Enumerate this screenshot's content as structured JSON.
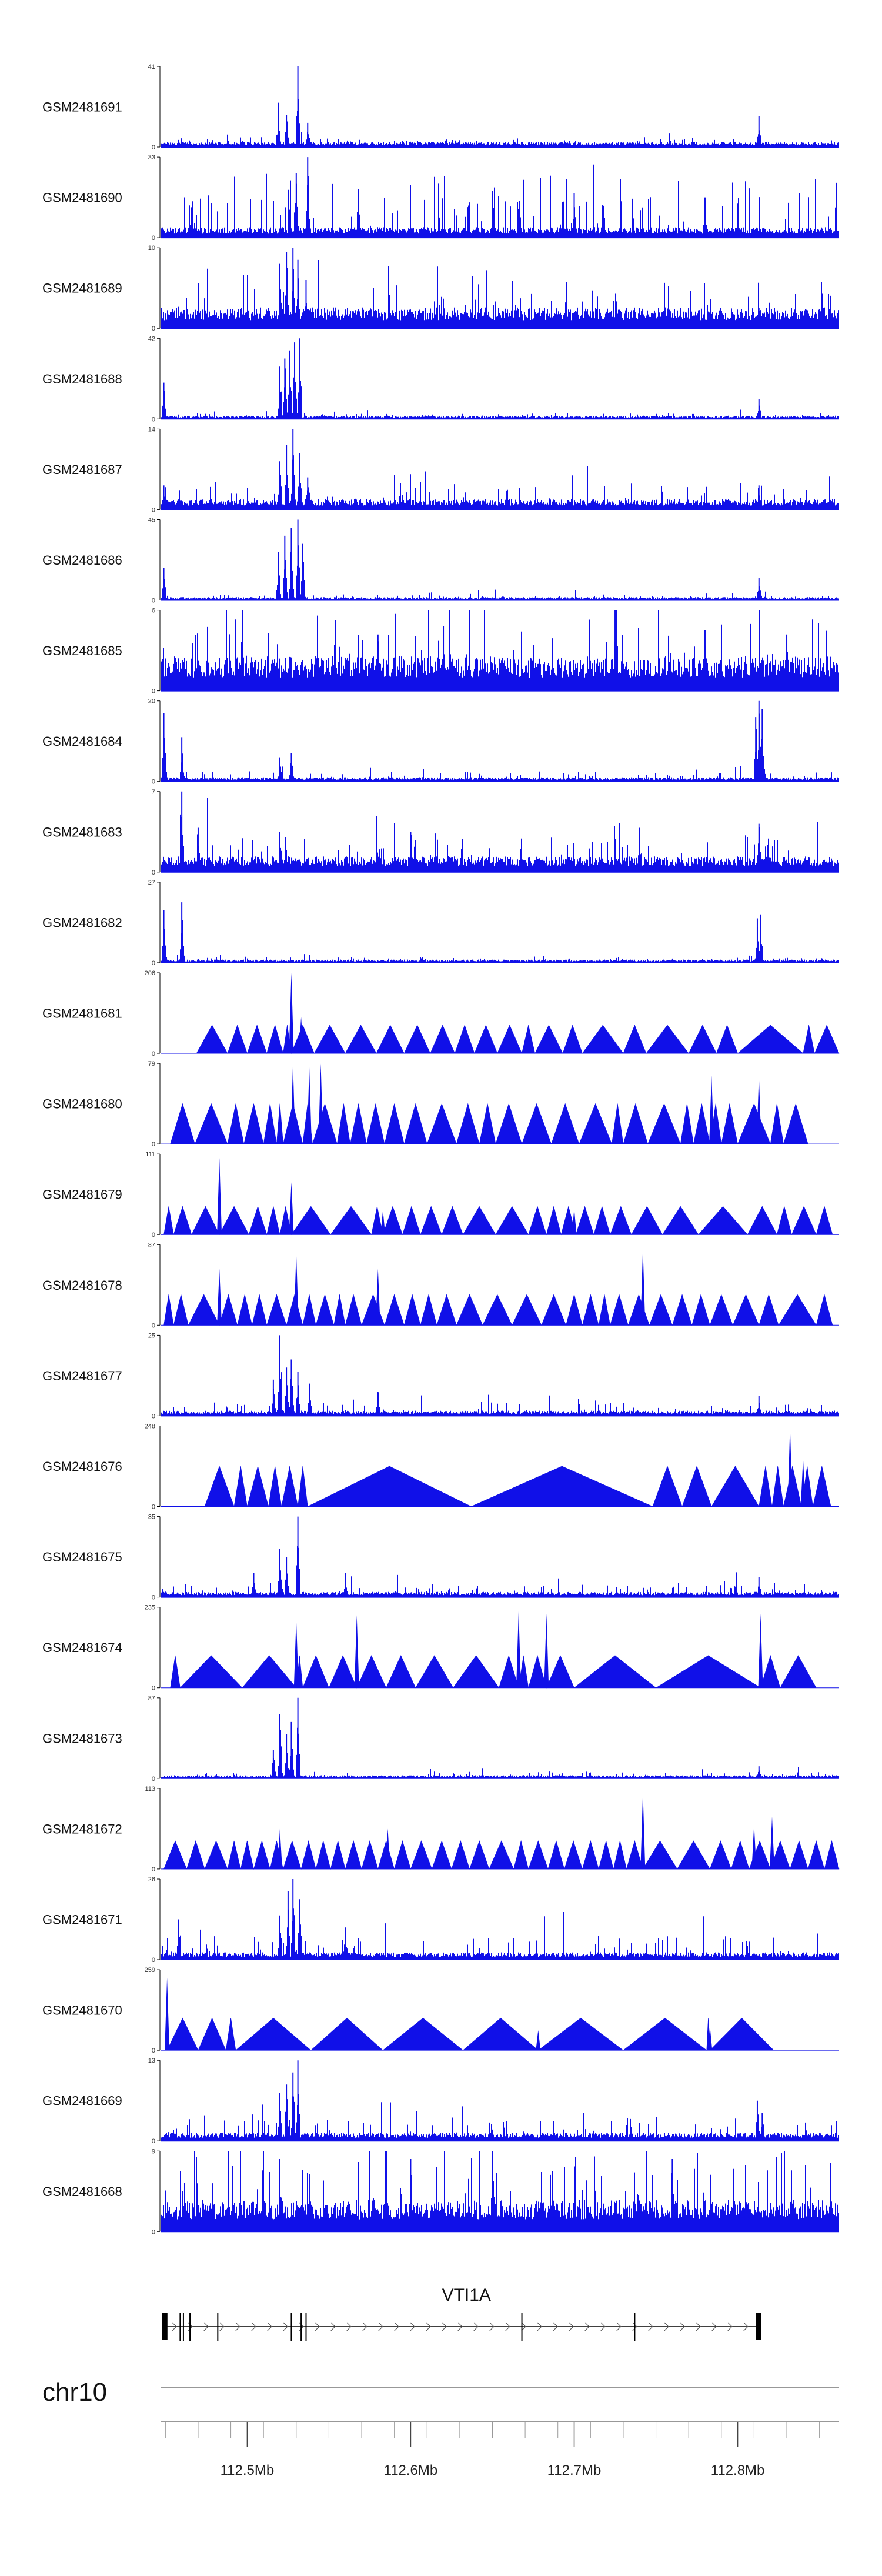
{
  "chart_data": {
    "type": "area",
    "title": "",
    "colors": {
      "signal": "#1010e8",
      "axis": "#000000",
      "gene": "#000000",
      "ruler": "#777777"
    },
    "x_range_mb": [
      112.447,
      112.862
    ],
    "tracks": [
      {
        "name": "GSM2481691",
        "ymax": "41",
        "ymin": "0",
        "style": "bars",
        "density": 0.9,
        "baseline": 0.05,
        "noise": 0.06,
        "peaks": [
          [
            112.519,
            0.55
          ],
          [
            112.524,
            0.4
          ],
          [
            112.531,
            1.0
          ],
          [
            112.537,
            0.3
          ],
          [
            112.813,
            0.38
          ]
        ]
      },
      {
        "name": "GSM2481690",
        "ymax": "33",
        "ymin": "0",
        "style": "spiky",
        "density": 1.0,
        "baseline": 0.1,
        "noise": 0.45,
        "peaks": [
          [
            112.53,
            0.8
          ],
          [
            112.537,
            1.0
          ],
          [
            112.568,
            0.6
          ],
          [
            112.7,
            0.55
          ],
          [
            112.78,
            0.5
          ]
        ]
      },
      {
        "name": "GSM2481689",
        "ymax": "10",
        "ymin": "0",
        "style": "bars",
        "density": 1.0,
        "baseline": 0.2,
        "noise": 0.35,
        "peaks": [
          [
            112.52,
            0.8
          ],
          [
            112.524,
            0.95
          ],
          [
            112.528,
            1.0
          ],
          [
            112.531,
            0.85
          ],
          [
            112.536,
            0.6
          ],
          [
            112.813,
            0.25
          ]
        ]
      },
      {
        "name": "GSM2481688",
        "ymax": "42",
        "ymin": "0",
        "style": "bars",
        "density": 0.9,
        "baseline": 0.03,
        "noise": 0.04,
        "peaks": [
          [
            112.449,
            0.45
          ],
          [
            112.52,
            0.65
          ],
          [
            112.523,
            0.75
          ],
          [
            112.526,
            0.85
          ],
          [
            112.529,
            0.95
          ],
          [
            112.532,
            1.0
          ],
          [
            112.813,
            0.25
          ]
        ]
      },
      {
        "name": "GSM2481687",
        "ymax": "14",
        "ymin": "0",
        "style": "bars",
        "density": 1.0,
        "baseline": 0.1,
        "noise": 0.22,
        "peaks": [
          [
            112.449,
            0.3
          ],
          [
            112.52,
            0.6
          ],
          [
            112.524,
            0.8
          ],
          [
            112.528,
            1.0
          ],
          [
            112.532,
            0.7
          ],
          [
            112.537,
            0.4
          ],
          [
            112.813,
            0.3
          ]
        ]
      },
      {
        "name": "GSM2481686",
        "ymax": "45",
        "ymin": "0",
        "style": "bars",
        "density": 0.9,
        "baseline": 0.03,
        "noise": 0.04,
        "peaks": [
          [
            112.449,
            0.4
          ],
          [
            112.519,
            0.6
          ],
          [
            112.523,
            0.8
          ],
          [
            112.527,
            0.9
          ],
          [
            112.531,
            1.0
          ],
          [
            112.534,
            0.7
          ],
          [
            112.813,
            0.28
          ]
        ]
      },
      {
        "name": "GSM2481685",
        "ymax": "6",
        "ymin": "0",
        "style": "bars",
        "density": 1.0,
        "baseline": 0.33,
        "noise": 0.5,
        "peaks": [
          [
            112.58,
            0.7
          ],
          [
            112.62,
            0.8
          ],
          [
            112.725,
            1.0
          ],
          [
            112.78,
            0.75
          ],
          [
            112.83,
            0.7
          ]
        ]
      },
      {
        "name": "GSM2481684",
        "ymax": "20",
        "ymin": "0",
        "style": "bars",
        "density": 0.9,
        "baseline": 0.04,
        "noise": 0.08,
        "peaks": [
          [
            112.449,
            0.85
          ],
          [
            112.46,
            0.55
          ],
          [
            112.52,
            0.3
          ],
          [
            112.527,
            0.35
          ],
          [
            112.811,
            0.8
          ],
          [
            112.813,
            1.0
          ],
          [
            112.815,
            0.9
          ]
        ]
      },
      {
        "name": "GSM2481683",
        "ymax": "7",
        "ymin": "0",
        "style": "bars",
        "density": 1.0,
        "baseline": 0.15,
        "noise": 0.3,
        "peaks": [
          [
            112.46,
            1.0
          ],
          [
            112.47,
            0.55
          ],
          [
            112.52,
            0.5
          ],
          [
            112.6,
            0.5
          ],
          [
            112.74,
            0.55
          ],
          [
            112.813,
            0.6
          ]
        ]
      },
      {
        "name": "GSM2481682",
        "ymax": "27",
        "ymin": "0",
        "style": "bars",
        "density": 0.9,
        "baseline": 0.03,
        "noise": 0.04,
        "peaks": [
          [
            112.449,
            0.65
          ],
          [
            112.46,
            0.75
          ],
          [
            112.812,
            0.55
          ],
          [
            112.814,
            0.6
          ]
        ]
      },
      {
        "name": "GSM2481681",
        "ymax": "206",
        "ymin": "0",
        "style": "tri",
        "tri_height": 0.35,
        "vertices": [
          112.469,
          112.488,
          112.5,
          112.512,
          112.522,
          112.527,
          112.541,
          112.56,
          112.579,
          112.596,
          112.612,
          112.627,
          112.639,
          112.653,
          112.668,
          112.676,
          112.693,
          112.705,
          112.73,
          112.744,
          112.77,
          112.787,
          112.8,
          112.84,
          112.847,
          112.862
        ],
        "peaks": [
          [
            112.527,
            1.0
          ],
          [
            112.533,
            0.45
          ]
        ]
      },
      {
        "name": "GSM2481680",
        "ymax": "79",
        "ymin": "0",
        "style": "tri",
        "tri_height": 0.5,
        "vertices": [
          112.453,
          112.468,
          112.488,
          112.498,
          112.51,
          112.518,
          112.522,
          112.534,
          112.54,
          112.555,
          112.563,
          112.573,
          112.584,
          112.596,
          112.61,
          112.628,
          112.642,
          112.652,
          112.668,
          112.686,
          112.703,
          112.723,
          112.73,
          112.745,
          112.765,
          112.773,
          112.783,
          112.79,
          112.8,
          112.82,
          112.828,
          112.843
        ],
        "peaks": [
          [
            112.528,
            1.0
          ],
          [
            112.538,
            0.95
          ],
          [
            112.545,
            1.0
          ],
          [
            112.784,
            0.85
          ],
          [
            112.813,
            0.85
          ]
        ]
      },
      {
        "name": "GSM2481679",
        "ymax": "111",
        "ymin": "0",
        "style": "tri",
        "tri_height": 0.35,
        "vertices": [
          112.449,
          112.455,
          112.466,
          112.483,
          112.501,
          112.512,
          112.52,
          112.527,
          112.551,
          112.576,
          112.583,
          112.595,
          112.606,
          112.619,
          112.632,
          112.652,
          112.672,
          112.683,
          112.692,
          112.701,
          112.712,
          112.722,
          112.735,
          112.754,
          112.776,
          112.806,
          112.824,
          112.833,
          112.848,
          112.858
        ],
        "peaks": [
          [
            112.483,
            0.95
          ],
          [
            112.527,
            0.65
          ],
          [
            112.583,
            0.3
          ],
          [
            112.7,
            0.32
          ]
        ]
      },
      {
        "name": "GSM2481678",
        "ymax": "87",
        "ymin": "0",
        "style": "tri",
        "tri_height": 0.38,
        "vertices": [
          112.449,
          112.455,
          112.464,
          112.483,
          112.494,
          112.503,
          112.512,
          112.524,
          112.534,
          112.542,
          112.553,
          112.56,
          112.57,
          112.584,
          112.596,
          112.606,
          112.616,
          112.628,
          112.644,
          112.662,
          112.68,
          112.695,
          112.705,
          112.715,
          112.722,
          112.733,
          112.746,
          112.76,
          112.772,
          112.783,
          112.797,
          112.813,
          112.825,
          112.848,
          112.858
        ],
        "peaks": [
          [
            112.483,
            0.7
          ],
          [
            112.53,
            0.9
          ],
          [
            112.58,
            0.7
          ],
          [
            112.742,
            0.95
          ]
        ]
      },
      {
        "name": "GSM2481677",
        "ymax": "25",
        "ymin": "0",
        "style": "bars",
        "density": 0.9,
        "baseline": 0.05,
        "noise": 0.12,
        "peaks": [
          [
            112.516,
            0.45
          ],
          [
            112.52,
            1.0
          ],
          [
            112.524,
            0.6
          ],
          [
            112.527,
            0.7
          ],
          [
            112.531,
            0.55
          ],
          [
            112.538,
            0.4
          ],
          [
            112.58,
            0.3
          ],
          [
            112.813,
            0.25
          ]
        ]
      },
      {
        "name": "GSM2481676",
        "ymax": "248",
        "ymin": "0",
        "style": "tri",
        "tri_height": 0.5,
        "vertices": [
          112.474,
          112.492,
          112.5,
          112.513,
          112.521,
          112.531,
          112.537,
          112.637,
          112.748,
          112.766,
          112.784,
          112.813,
          112.821,
          112.828,
          112.839,
          112.846,
          112.857
        ],
        "peaks": [
          [
            112.832,
            1.0
          ],
          [
            112.84,
            0.6
          ]
        ]
      },
      {
        "name": "GSM2481675",
        "ymax": "35",
        "ymin": "0",
        "style": "bars",
        "density": 0.9,
        "baseline": 0.05,
        "noise": 0.12,
        "peaks": [
          [
            112.504,
            0.3
          ],
          [
            112.52,
            0.6
          ],
          [
            112.524,
            0.5
          ],
          [
            112.531,
            1.0
          ],
          [
            112.56,
            0.3
          ],
          [
            112.813,
            0.25
          ]
        ]
      },
      {
        "name": "GSM2481674",
        "ymax": "235",
        "ymin": "0",
        "style": "tri",
        "tri_height": 0.4,
        "vertices": [
          112.453,
          112.459,
          112.497,
          112.53,
          112.534,
          112.55,
          112.567,
          112.585,
          112.603,
          112.626,
          112.654,
          112.666,
          112.672,
          112.683,
          112.7,
          112.75,
          112.814,
          112.826,
          112.848
        ],
        "peaks": [
          [
            112.53,
            0.85
          ],
          [
            112.567,
            0.9
          ],
          [
            112.666,
            0.95
          ],
          [
            112.683,
            0.92
          ],
          [
            112.814,
            0.92
          ]
        ]
      },
      {
        "name": "GSM2481673",
        "ymax": "87",
        "ymin": "0",
        "style": "bars",
        "density": 0.9,
        "baseline": 0.03,
        "noise": 0.05,
        "peaks": [
          [
            112.516,
            0.35
          ],
          [
            112.52,
            0.8
          ],
          [
            112.524,
            0.55
          ],
          [
            112.527,
            0.7
          ],
          [
            112.531,
            1.0
          ],
          [
            112.813,
            0.15
          ]
        ]
      },
      {
        "name": "GSM2481672",
        "ymax": "113",
        "ymin": "0",
        "style": "tri",
        "tri_height": 0.35,
        "vertices": [
          112.449,
          112.463,
          112.474,
          112.488,
          112.496,
          112.504,
          112.514,
          112.522,
          112.533,
          112.542,
          112.551,
          112.56,
          112.57,
          112.58,
          112.59,
          112.6,
          112.613,
          112.625,
          112.636,
          112.648,
          112.663,
          112.672,
          112.684,
          112.694,
          112.705,
          112.715,
          112.724,
          112.732,
          112.742,
          112.763,
          112.783,
          112.796,
          112.807,
          112.82,
          112.832,
          112.843,
          112.853,
          112.862
        ],
        "peaks": [
          [
            112.52,
            0.5
          ],
          [
            112.586,
            0.5
          ],
          [
            112.742,
            0.95
          ],
          [
            112.81,
            0.55
          ],
          [
            112.821,
            0.65
          ]
        ]
      },
      {
        "name": "GSM2481671",
        "ymax": "26",
        "ymin": "0",
        "style": "bars",
        "density": 1.0,
        "baseline": 0.07,
        "noise": 0.25,
        "peaks": [
          [
            112.458,
            0.5
          ],
          [
            112.52,
            0.55
          ],
          [
            112.525,
            0.85
          ],
          [
            112.528,
            1.0
          ],
          [
            112.532,
            0.75
          ],
          [
            112.56,
            0.4
          ]
        ]
      },
      {
        "name": "GSM2481670",
        "ymax": "259",
        "ymin": "0",
        "style": "tri",
        "tri_height": 0.4,
        "vertices": [
          112.451,
          112.47,
          112.487,
          112.493,
          112.539,
          112.583,
          112.632,
          112.678,
          112.73,
          112.781,
          112.783,
          112.822
        ],
        "peaks": [
          [
            112.451,
            0.9
          ],
          [
            112.678,
            0.25
          ],
          [
            112.783,
            0.3
          ]
        ]
      },
      {
        "name": "GSM2481669",
        "ymax": "13",
        "ymin": "0",
        "style": "bars",
        "density": 1.0,
        "baseline": 0.08,
        "noise": 0.2,
        "peaks": [
          [
            112.52,
            0.6
          ],
          [
            112.524,
            0.7
          ],
          [
            112.528,
            0.85
          ],
          [
            112.531,
            1.0
          ],
          [
            112.812,
            0.5
          ],
          [
            112.815,
            0.35
          ]
        ]
      },
      {
        "name": "GSM2481668",
        "ymax": "9",
        "ymin": "0",
        "style": "bars",
        "density": 1.0,
        "baseline": 0.3,
        "noise": 0.7,
        "peaks": [
          [
            112.52,
            0.9
          ],
          [
            112.6,
            0.9
          ],
          [
            112.65,
            1.0
          ],
          [
            112.76,
            0.9
          ]
        ]
      }
    ],
    "gene": {
      "name": "VTI1A",
      "start_mb": 112.448,
      "end_mb": 112.813,
      "strand": "+",
      "exons": [
        [
          112.448,
          112.451
        ],
        [
          112.811,
          112.813
        ]
      ],
      "introns_marks": [
        112.459,
        112.461,
        112.465,
        112.482,
        112.527,
        112.533,
        112.536,
        112.668,
        112.737
      ]
    },
    "chromosome": "chr10",
    "axis": {
      "ticks_mb": [
        112.45,
        112.47,
        112.49,
        112.51,
        112.53,
        112.55,
        112.57,
        112.59,
        112.61,
        112.63,
        112.65,
        112.67,
        112.69,
        112.71,
        112.73,
        112.75,
        112.77,
        112.79,
        112.81,
        112.83,
        112.85
      ],
      "labels": [
        {
          "mb": 112.5,
          "text": "112.5Mb"
        },
        {
          "mb": 112.6,
          "text": "112.6Mb"
        },
        {
          "mb": 112.7,
          "text": "112.7Mb"
        },
        {
          "mb": 112.8,
          "text": "112.8Mb"
        }
      ]
    }
  }
}
